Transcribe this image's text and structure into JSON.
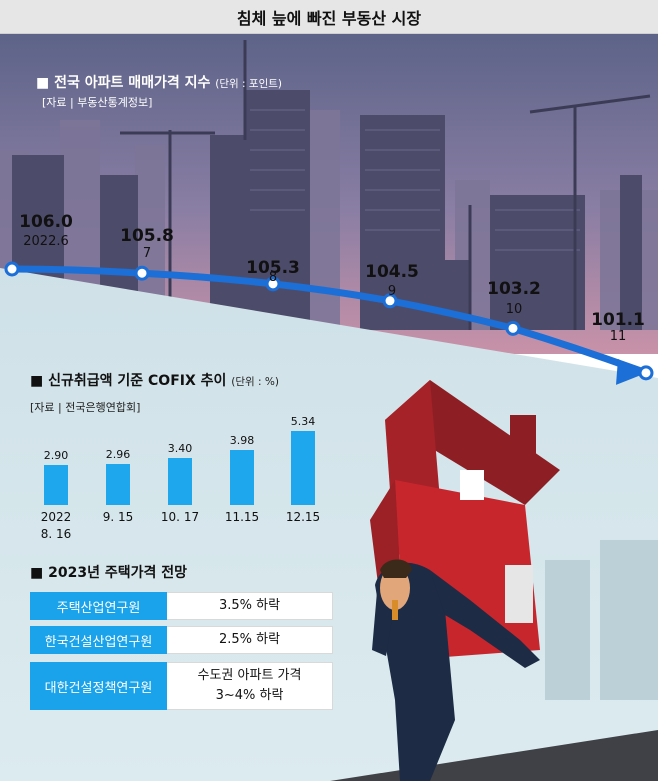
{
  "header": {
    "title": "침체 늪에 빠진 부동산 시장"
  },
  "price_section": {
    "title": "전국 아파트 매매가격 지수",
    "unit": "(단위 : 포인트)",
    "source": "[자료 | 부동산통계정보]"
  },
  "cofix_section": {
    "title": "신규취급액 기준 COFIX 추이",
    "unit": "(단위 : %)",
    "source": "[자료 | 전국은행연합회]"
  },
  "forecast": {
    "title": "2023년 주택가격 전망",
    "rows": [
      {
        "org": "주택산업연구원",
        "value": "3.5% 하락",
        "value2": ""
      },
      {
        "org": "한국건설산업연구원",
        "value": "2.5% 하락",
        "value2": ""
      },
      {
        "org": "대한건설정책연구원",
        "value": "수도권 아파트 가격",
        "value2": "3~4% 하락"
      }
    ]
  },
  "colors": {
    "line": "#1b6fd6",
    "bar": "#1ea7ec",
    "org_cell": "#1aa3ea",
    "sky_top": "#6b6f94",
    "sky_bottom": "#c890a6",
    "ground": "#d6e6ec",
    "house": "#c8262d"
  },
  "chart_data": [
    {
      "type": "line",
      "title": "전국 아파트 매매가격 지수",
      "unit": "(단위 : 포인트)",
      "x": [
        "2022.6",
        "7",
        "8",
        "9",
        "10",
        "11"
      ],
      "series": [
        {
          "values": [
            106.0,
            105.8,
            105.3,
            104.5,
            103.2,
            101.1
          ]
        }
      ],
      "value_labels": [
        "106.0",
        "105.8",
        "105.3",
        "104.5",
        "103.2",
        "101.1"
      ],
      "ylim": [
        100.5,
        106.5
      ],
      "grid": false
    },
    {
      "type": "bar",
      "title": "신규취급액 기준 COFIX 추이",
      "unit": "(단위 : %)",
      "categories": [
        [
          "2022",
          "8. 16"
        ],
        [
          "9. 15"
        ],
        [
          "10. 17"
        ],
        [
          "11.15"
        ],
        [
          "12.15"
        ]
      ],
      "values": [
        2.9,
        2.96,
        3.4,
        3.98,
        5.34
      ],
      "value_labels": [
        "2.90",
        "2.96",
        "3.40",
        "3.98",
        "5.34"
      ],
      "ylim": [
        0,
        5.6
      ],
      "grid": false
    }
  ]
}
